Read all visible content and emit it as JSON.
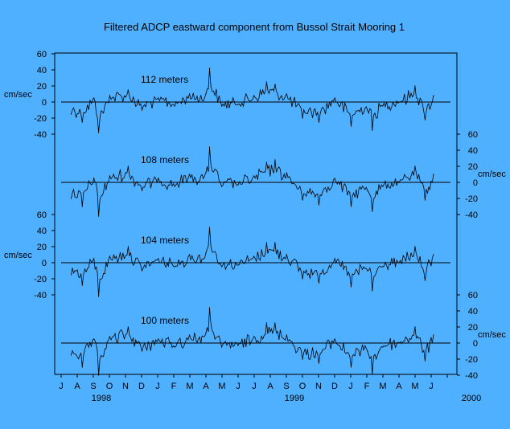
{
  "chart_data": {
    "type": "line",
    "title": "Filtered ADCP eastward component from Bussol Strait Mooring 1",
    "y_unit": "cm/sec",
    "y_ticks": [
      "60",
      "40",
      "20",
      "0",
      "-20",
      "-40"
    ],
    "ylim": [
      -40,
      60
    ],
    "x_start": "1998-07-01",
    "x_end": "2000-07-01",
    "x_months": [
      "J",
      "A",
      "S",
      "O",
      "N",
      "D",
      "J",
      "F",
      "M",
      "A",
      "M",
      "J",
      "J",
      "A",
      "S",
      "O",
      "N",
      "D",
      "J",
      "F",
      "M",
      "A",
      "M",
      "J"
    ],
    "x_years": [
      {
        "label": "1998",
        "month_index": 2.5
      },
      {
        "label": "1999",
        "month_index": 14.5
      },
      {
        "label": "2000",
        "month_index": 25.5
      }
    ],
    "grid": false,
    "series": [
      {
        "name": "112 meters",
        "label_month": 5.2,
        "axis": "left",
        "x": [
          "1998-07-20",
          "1998-08-10",
          "1998-09-01",
          "1998-09-10",
          "1998-10-01",
          "1998-11-05",
          "1998-12-01",
          "1999-01-01",
          "1999-02-01",
          "1999-03-01",
          "1999-04-01",
          "1999-04-08",
          "1999-05-01",
          "1999-06-01",
          "1999-07-01",
          "1999-07-25",
          "1999-08-10",
          "1999-09-01",
          "1999-10-01",
          "1999-11-01",
          "1999-12-01",
          "2000-01-01",
          "2000-02-01",
          "2000-02-10",
          "2000-03-01",
          "2000-04-01",
          "2000-05-01",
          "2000-05-20",
          "2000-06-05"
        ],
        "values": [
          -15,
          -25,
          5,
          -38,
          8,
          15,
          -10,
          5,
          -5,
          10,
          10,
          42,
          -5,
          -3,
          8,
          25,
          22,
          10,
          -20,
          -25,
          5,
          -30,
          -10,
          -35,
          -5,
          0,
          20,
          -22,
          8
        ]
      },
      {
        "name": "108 meters",
        "label_month": 5.2,
        "axis": "right",
        "x": [
          "1998-07-20",
          "1998-08-10",
          "1998-09-01",
          "1998-09-10",
          "1998-10-01",
          "1998-11-05",
          "1998-12-01",
          "1999-01-01",
          "1999-02-01",
          "1999-03-01",
          "1999-04-01",
          "1999-04-08",
          "1999-05-01",
          "1999-06-01",
          "1999-07-01",
          "1999-07-25",
          "1999-08-10",
          "1999-09-01",
          "1999-10-01",
          "1999-11-01",
          "1999-12-01",
          "2000-01-01",
          "2000-02-01",
          "2000-02-10",
          "2000-03-01",
          "2000-04-01",
          "2000-05-01",
          "2000-05-20",
          "2000-06-05"
        ],
        "values": [
          -20,
          -30,
          5,
          -42,
          8,
          20,
          -10,
          5,
          -5,
          10,
          12,
          44,
          -5,
          -3,
          8,
          25,
          28,
          12,
          -22,
          -28,
          5,
          -30,
          -10,
          -36,
          -5,
          0,
          20,
          -22,
          10
        ]
      },
      {
        "name": "104 meters",
        "label_month": 5.2,
        "axis": "left",
        "x": [
          "1998-07-20",
          "1998-08-10",
          "1998-09-01",
          "1998-09-10",
          "1998-10-01",
          "1998-11-05",
          "1998-12-01",
          "1999-01-01",
          "1999-02-01",
          "1999-03-01",
          "1999-04-01",
          "1999-04-08",
          "1999-05-01",
          "1999-06-01",
          "1999-07-01",
          "1999-07-25",
          "1999-08-10",
          "1999-09-01",
          "1999-10-01",
          "1999-11-01",
          "1999-12-01",
          "2000-01-01",
          "2000-02-01",
          "2000-02-10",
          "2000-03-01",
          "2000-04-01",
          "2000-05-01",
          "2000-05-20",
          "2000-06-05"
        ],
        "values": [
          -15,
          -28,
          5,
          -42,
          8,
          20,
          -10,
          5,
          -5,
          10,
          12,
          44,
          -5,
          -3,
          8,
          25,
          25,
          10,
          -20,
          -25,
          5,
          -30,
          -10,
          -35,
          -5,
          0,
          20,
          -22,
          10
        ]
      },
      {
        "name": "100 meters",
        "label_month": 5.2,
        "axis": "right",
        "x": [
          "1998-07-20",
          "1998-08-10",
          "1998-09-01",
          "1998-09-10",
          "1998-10-01",
          "1998-11-05",
          "1998-12-01",
          "1999-01-01",
          "1999-02-01",
          "1999-03-01",
          "1999-04-01",
          "1999-04-08",
          "1999-05-01",
          "1999-06-01",
          "1999-07-01",
          "1999-07-25",
          "1999-08-10",
          "1999-09-01",
          "1999-10-01",
          "1999-11-01",
          "1999-12-01",
          "2000-01-01",
          "2000-02-01",
          "2000-02-10",
          "2000-03-01",
          "2000-04-01",
          "2000-05-01",
          "2000-05-20",
          "2000-06-05"
        ],
        "values": [
          -15,
          -30,
          5,
          -40,
          8,
          20,
          -10,
          5,
          -5,
          10,
          12,
          44,
          -5,
          -3,
          8,
          25,
          25,
          10,
          -20,
          -25,
          5,
          -30,
          -10,
          -38,
          -5,
          0,
          20,
          -22,
          10
        ]
      }
    ]
  }
}
